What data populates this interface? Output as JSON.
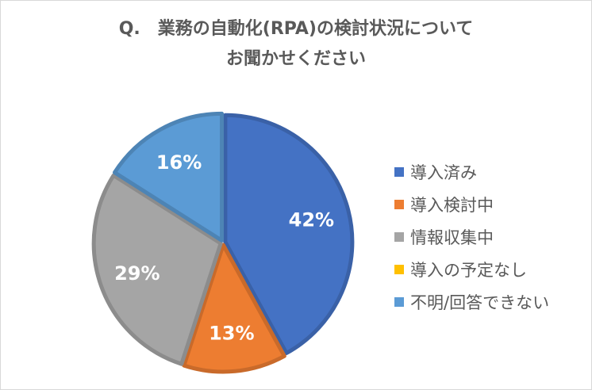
{
  "chart_data": {
    "type": "pie",
    "title_lines": [
      "Q.　業務の自動化(RPA)の検討状況について",
      "お聞かせください"
    ],
    "legend_position": "right",
    "slices": [
      {
        "name": "導入済み",
        "value": 42,
        "label": "42%",
        "color": "#4472c4"
      },
      {
        "name": "導入検討中",
        "value": 13,
        "label": "13%",
        "color": "#ed7d31"
      },
      {
        "name": "情報収集中",
        "value": 29,
        "label": "29%",
        "color": "#a5a5a5"
      },
      {
        "name": "導入の予定なし",
        "value": 0,
        "label": "",
        "color": "#ffc000"
      },
      {
        "name": "不明/回答できない",
        "value": 16,
        "label": "16%",
        "color": "#5b9bd5"
      }
    ]
  }
}
